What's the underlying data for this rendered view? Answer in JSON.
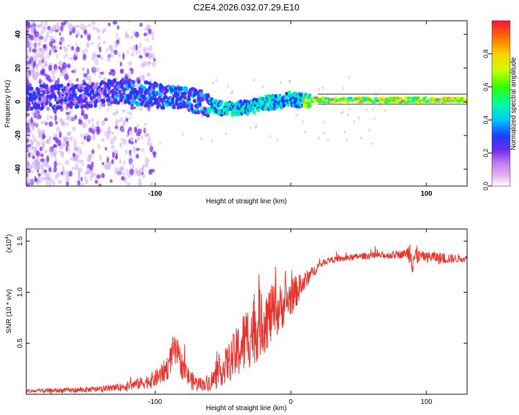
{
  "title": "C2E4.2026.032.07.29.E10",
  "colors": {
    "frame": "#000000",
    "snr_line": "#e8322b",
    "dot_faint": "#c9a8f2",
    "dot_mid": "#7b2cf0"
  },
  "chart_data": [
    {
      "type": "heatmap",
      "name": "spectrogram",
      "xlabel": "Height of straight line (km)",
      "ylabel": "Frequency (Hz)",
      "xlim": [
        -195,
        130
      ],
      "ylim": [
        -50,
        48
      ],
      "xticks": [
        -100,
        0,
        100
      ],
      "xtick_labels": [
        "-100",
        "",
        "100"
      ],
      "yticks": [
        -40,
        -20,
        0,
        20,
        40
      ],
      "ytick_labels": [
        "-40",
        "-20",
        "0",
        "20",
        "40"
      ],
      "ridge": {
        "x": [
          -195,
          -170,
          -150,
          -130,
          -110,
          -90,
          -75,
          -65,
          -60,
          -50,
          -40,
          -30,
          -20,
          -10,
          0,
          5,
          10,
          20,
          40,
          60,
          80,
          100,
          130
        ],
        "y": [
          2,
          3,
          4,
          6,
          5,
          3,
          1,
          0,
          -2,
          -4,
          -4,
          -3,
          -1,
          0,
          2,
          1,
          1,
          1,
          1,
          1,
          1,
          1,
          1
        ]
      },
      "colorbar": {
        "label": "Normalized spectral amplitude",
        "range": [
          0,
          1
        ],
        "ticks": [
          0,
          0.2,
          0.4,
          0.6,
          0.8
        ],
        "tick_labels": [
          "0.0",
          "0.2",
          "0.4",
          "0.6",
          "0.8"
        ]
      }
    },
    {
      "type": "line",
      "name": "snr",
      "xlabel": "Height of straight line (km)",
      "ylabel": "SNR (10 * v/v)",
      "multiplier_label": "(x10",
      "multiplier_exp": "4",
      "multiplier_close": ")",
      "xlim": [
        -195,
        130
      ],
      "ylim": [
        0,
        1.62
      ],
      "xticks": [
        -100,
        0,
        100
      ],
      "xtick_labels": [
        "-100",
        "0",
        "100"
      ],
      "yticks": [
        0.5,
        1.0,
        1.5
      ],
      "ytick_labels": [
        "0.5",
        "1.0",
        "1.5"
      ],
      "envelope": {
        "x": [
          -195,
          -160,
          -140,
          -125,
          -110,
          -100,
          -95,
          -90,
          -87,
          -84,
          -80,
          -76,
          -72,
          -68,
          -64,
          -60,
          -56,
          -52,
          -48,
          -44,
          -40,
          -36,
          -32,
          -28,
          -24,
          -20,
          -16,
          -12,
          -8,
          -4,
          0,
          5,
          10,
          15,
          20,
          25,
          30,
          40,
          50,
          60,
          70,
          80,
          85,
          88,
          90,
          92,
          95,
          100,
          105,
          110,
          115,
          120,
          130
        ],
        "y": [
          0.03,
          0.04,
          0.05,
          0.07,
          0.11,
          0.15,
          0.2,
          0.28,
          0.42,
          0.4,
          0.28,
          0.18,
          0.12,
          0.1,
          0.1,
          0.12,
          0.16,
          0.22,
          0.28,
          0.34,
          0.4,
          0.48,
          0.56,
          0.62,
          0.68,
          0.72,
          0.76,
          0.8,
          0.84,
          0.9,
          0.95,
          1.02,
          1.1,
          1.18,
          1.25,
          1.3,
          1.32,
          1.33,
          1.35,
          1.36,
          1.36,
          1.37,
          1.38,
          1.4,
          1.35,
          1.34,
          1.36,
          1.34,
          1.35,
          1.33,
          1.33,
          1.33,
          1.33
        ]
      },
      "noise_amp": {
        "x": [
          -195,
          -130,
          -110,
          -95,
          -85,
          -75,
          -65,
          -55,
          -45,
          -35,
          -25,
          -15,
          -5,
          5,
          15,
          25,
          40,
          85,
          90,
          95,
          110,
          130
        ],
        "a": [
          0.02,
          0.03,
          0.06,
          0.1,
          0.16,
          0.1,
          0.06,
          0.12,
          0.2,
          0.32,
          0.35,
          0.3,
          0.22,
          0.15,
          0.06,
          0.03,
          0.03,
          0.04,
          0.2,
          0.05,
          0.06,
          0.03
        ]
      }
    }
  ]
}
